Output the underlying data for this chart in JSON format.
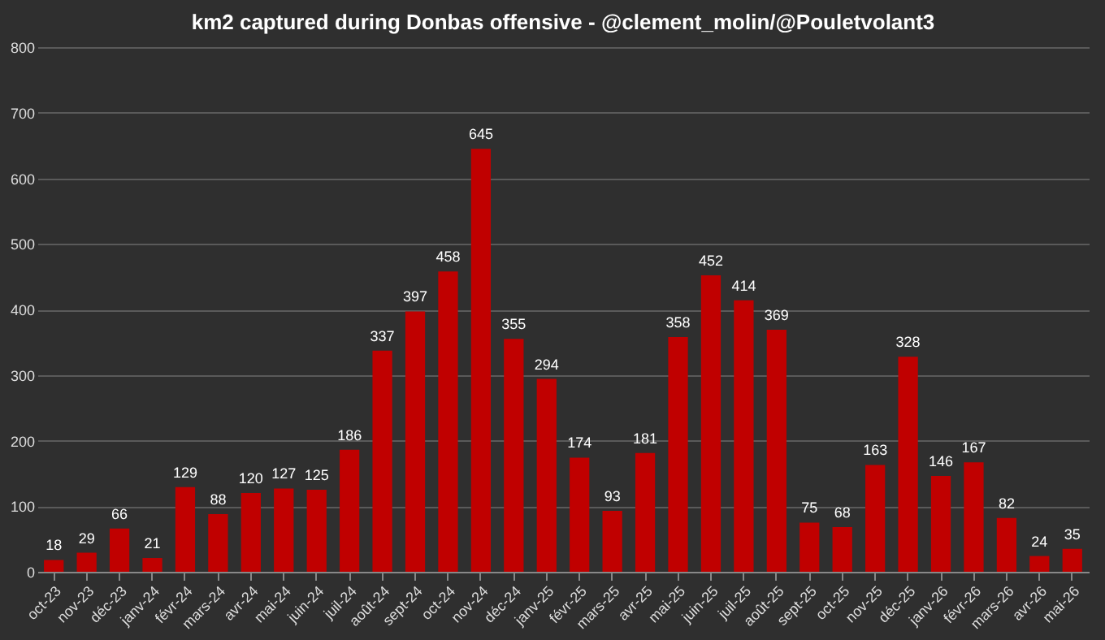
{
  "chart_data": {
    "type": "bar",
    "title": "km2 captured during Donbas offensive - @clement_molin/@Pouletvolant3",
    "categories": [
      "oct-23",
      "nov-23",
      "déc-23",
      "janv-24",
      "févr-24",
      "mars-24",
      "avr-24",
      "mai-24",
      "juin-24",
      "juil-24",
      "août-24",
      "sept-24",
      "oct-24",
      "nov-24",
      "déc-24",
      "janv-25",
      "févr-25",
      "mars-25",
      "avr-25",
      "mai-25",
      "juin-25",
      "juil-25",
      "août-25",
      "sept-25",
      "oct-25",
      "nov-25",
      "déc-25",
      "janv-26",
      "févr-26",
      "mars-26",
      "avr-26",
      "mai-26"
    ],
    "values": [
      18,
      29,
      66,
      21,
      129,
      88,
      120,
      127,
      125,
      186,
      337,
      397,
      458,
      645,
      355,
      294,
      174,
      93,
      181,
      358,
      452,
      414,
      369,
      75,
      68,
      163,
      328,
      146,
      167,
      82,
      24,
      35
    ],
    "color": "#c00000",
    "ylim": [
      0,
      800
    ],
    "yticks": [
      0,
      100,
      200,
      300,
      400,
      500,
      600,
      700,
      800
    ],
    "grid": "y",
    "data_labels": true
  }
}
